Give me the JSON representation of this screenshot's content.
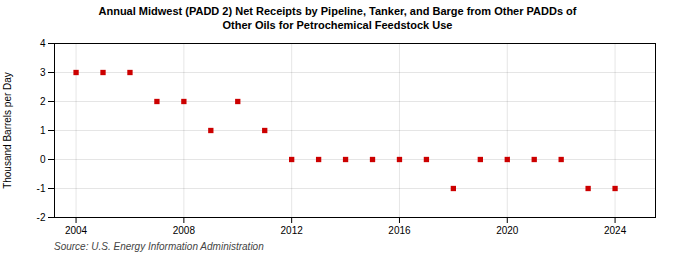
{
  "chart_data": {
    "type": "scatter",
    "title": "Annual Midwest (PADD 2) Net Receipts by Pipeline, Tanker, and Barge from Other PADDs of\nOther Oils for Petrochemical Feedstock Use",
    "ylabel": "Thousand Barrels per Day",
    "caption": "Source: U.S. Energy Information Administration",
    "x": [
      2004,
      2005,
      2006,
      2007,
      2008,
      2009,
      2010,
      2011,
      2012,
      2013,
      2014,
      2015,
      2016,
      2017,
      2018,
      2019,
      2020,
      2021,
      2022,
      2023,
      2024
    ],
    "values": [
      3.0,
      3.0,
      3.0,
      2.0,
      2.0,
      1.0,
      2.0,
      1.0,
      0.0,
      0.0,
      0.0,
      0.0,
      0.0,
      0.0,
      -1.0,
      0.0,
      0.0,
      0.0,
      0.0,
      -1.0,
      -1.0
    ],
    "color": "#CC0000",
    "marker": "square",
    "xlim": [
      2003.2,
      2025.5
    ],
    "xticks": [
      2004,
      2008,
      2012,
      2016,
      2020,
      2024
    ],
    "ylim": [
      -2.0,
      4.0
    ],
    "yticks": [
      -2,
      -1,
      0,
      1,
      2,
      3,
      4
    ],
    "grid": true
  }
}
